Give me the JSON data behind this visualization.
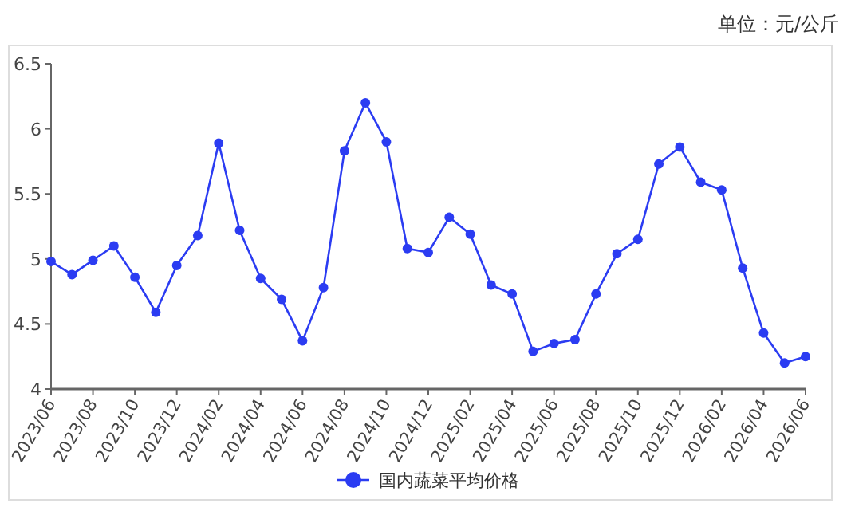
{
  "chart_data": {
    "type": "line",
    "annotations": [
      "单位：元/公斤"
    ],
    "categories": [
      "2023/06",
      null,
      "2023/08",
      null,
      "2023/10",
      null,
      "2023/12",
      null,
      "2024/02",
      null,
      "2024/04",
      null,
      "2024/06",
      null,
      "2024/08",
      null,
      "2024/10",
      null,
      "2024/12",
      null,
      "2025/02",
      null,
      "2025/04",
      null,
      "2025/06",
      null,
      "2025/08",
      null,
      "2025/10",
      null,
      "2025/12",
      null,
      "2026/02",
      null,
      "2026/04",
      null,
      "2026/06"
    ],
    "series": [
      {
        "name": "国内蔬菜平均价格",
        "color": "#2b3cf2",
        "values": [
          4.98,
          4.88,
          4.99,
          5.1,
          4.86,
          4.59,
          4.95,
          5.18,
          5.89,
          5.22,
          4.85,
          4.69,
          4.37,
          4.78,
          5.83,
          6.2,
          5.9,
          5.08,
          5.05,
          5.32,
          5.19,
          4.8,
          4.73,
          4.29,
          4.35,
          4.38,
          4.73,
          5.04,
          5.15,
          5.73,
          5.86,
          5.59,
          5.53,
          4.93,
          4.43,
          4.2,
          4.25
        ]
      }
    ],
    "ylim": [
      4,
      6.5
    ],
    "yticks": [
      4,
      4.5,
      5,
      5.5,
      6,
      6.5
    ],
    "marker": "circle",
    "line_style": "solid",
    "legend": "bottom",
    "grid": false
  }
}
